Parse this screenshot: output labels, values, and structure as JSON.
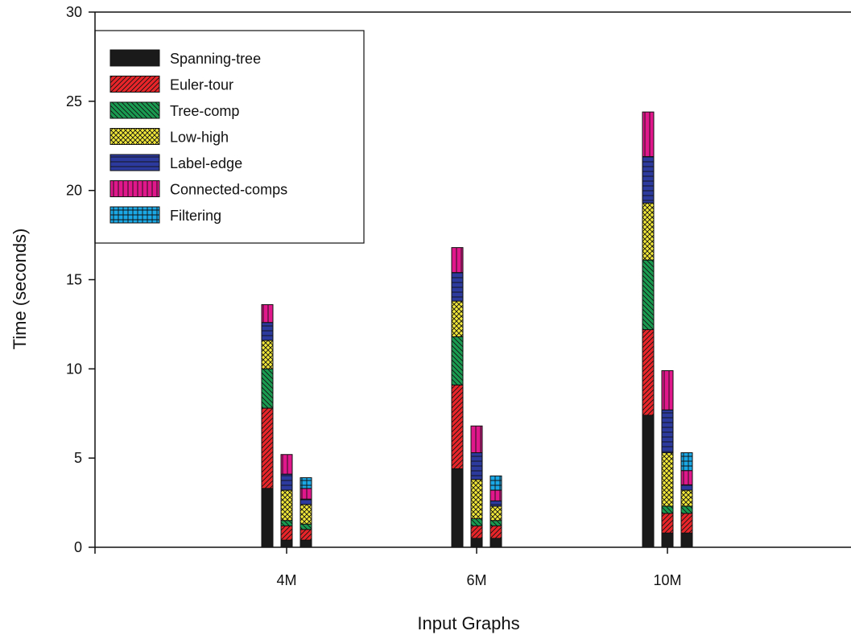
{
  "chart_data": {
    "type": "bar",
    "stacked": true,
    "xlabel": "Input Graphs",
    "ylabel": "Time (seconds)",
    "ylim": [
      0,
      30
    ],
    "yticks": [
      0,
      5,
      10,
      15,
      20,
      25,
      30
    ],
    "grid": false,
    "legend_position": "top-left",
    "categories": [
      "4M",
      "6M",
      "10M"
    ],
    "bars_per_category": 3,
    "series": [
      {
        "name": "Spanning-tree",
        "color": "#1a1a1a",
        "pattern": "solid",
        "values": [
          [
            3.3,
            0.4,
            0.4
          ],
          [
            4.4,
            0.5,
            0.5
          ],
          [
            7.4,
            0.8,
            0.8
          ]
        ]
      },
      {
        "name": "Euler-tour",
        "color": "#e8262a",
        "pattern": "diagonal",
        "values": [
          [
            4.5,
            0.8,
            0.6
          ],
          [
            4.7,
            0.7,
            0.7
          ],
          [
            4.8,
            1.1,
            1.1
          ]
        ]
      },
      {
        "name": "Tree-comp",
        "color": "#1a9a50",
        "pattern": "back-diagonal",
        "values": [
          [
            2.2,
            0.3,
            0.3
          ],
          [
            2.7,
            0.4,
            0.3
          ],
          [
            3.9,
            0.4,
            0.4
          ]
        ]
      },
      {
        "name": "Low-high",
        "color": "#f2e83a",
        "pattern": "crosshatch",
        "values": [
          [
            1.6,
            1.7,
            1.1
          ],
          [
            2.0,
            2.2,
            0.8
          ],
          [
            3.2,
            3.0,
            0.9
          ]
        ]
      },
      {
        "name": "Label-edge",
        "color": "#2b3a9c",
        "pattern": "horizontal",
        "values": [
          [
            1.0,
            0.9,
            0.3
          ],
          [
            1.6,
            1.5,
            0.3
          ],
          [
            2.6,
            2.4,
            0.3
          ]
        ]
      },
      {
        "name": "Connected-comps",
        "color": "#e0178a",
        "pattern": "vertical",
        "values": [
          [
            1.0,
            1.1,
            0.6
          ],
          [
            1.4,
            1.5,
            0.6
          ],
          [
            2.5,
            2.2,
            0.8
          ]
        ]
      },
      {
        "name": "Filtering",
        "color": "#1ba8e6",
        "pattern": "grid",
        "values": [
          [
            0,
            0,
            0.6
          ],
          [
            0,
            0,
            0.8
          ],
          [
            0,
            0,
            1.0
          ]
        ]
      }
    ]
  }
}
